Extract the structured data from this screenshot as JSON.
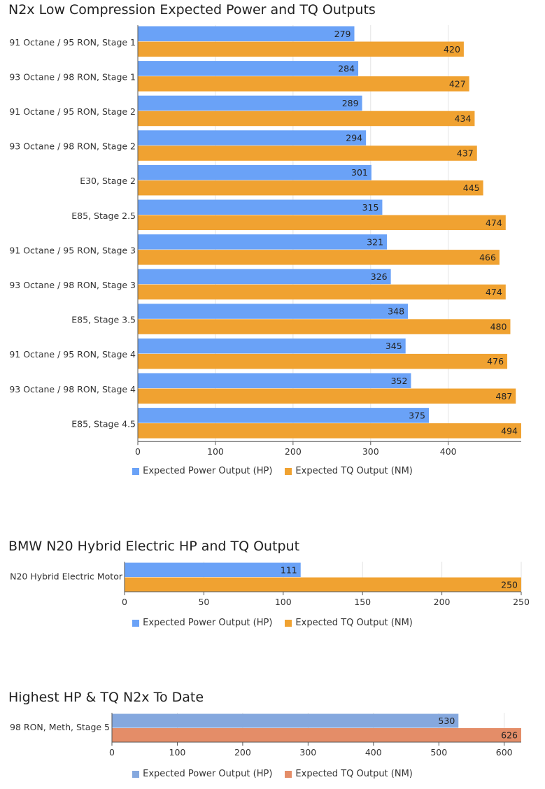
{
  "chart_data": [
    {
      "type": "bar",
      "orientation": "horizontal",
      "title": "N2x Low Compression Expected Power and TQ Outputs",
      "categories": [
        "91 Octane / 95 RON, Stage 1",
        "93 Octane / 98 RON, Stage 1",
        "91 Octane / 95 RON, Stage 2",
        "93 Octane / 98 RON, Stage 2",
        "E30, Stage 2",
        "E85, Stage 2.5",
        "91 Octane / 95 RON, Stage 3",
        "93 Octane / 98 RON, Stage 3",
        "E85, Stage 3.5",
        "91 Octane / 95 RON, Stage 4",
        "93 Octane / 98 RON, Stage 4",
        "E85, Stage 4.5"
      ],
      "series": [
        {
          "name": "Expected Power Output (HP)",
          "color": "#6aa2f7",
          "values": [
            279,
            284,
            289,
            294,
            301,
            315,
            321,
            326,
            348,
            345,
            352,
            375
          ]
        },
        {
          "name": "Expected TQ Output (NM)",
          "color": "#f0a231",
          "values": [
            420,
            427,
            434,
            437,
            445,
            474,
            466,
            474,
            480,
            476,
            487,
            494
          ]
        }
      ],
      "xlim": [
        0,
        494
      ],
      "xticks": [
        0,
        100,
        200,
        300,
        400
      ],
      "grid": true,
      "legend_position": "bottom"
    },
    {
      "type": "bar",
      "orientation": "horizontal",
      "title": "BMW N20 Hybrid Electric HP and TQ Output",
      "categories": [
        "N20 Hybrid Electric Motor"
      ],
      "series": [
        {
          "name": "Expected Power Output (HP)",
          "color": "#6aa2f7",
          "values": [
            111
          ]
        },
        {
          "name": "Expected TQ Output (NM)",
          "color": "#f0a231",
          "values": [
            250
          ]
        }
      ],
      "xlim": [
        0,
        250
      ],
      "xticks": [
        0,
        50,
        100,
        150,
        200,
        250
      ],
      "grid": true,
      "legend_position": "bottom"
    },
    {
      "type": "bar",
      "orientation": "horizontal",
      "title": "Highest HP & TQ N2x To Date",
      "categories": [
        "98 RON, Meth, Stage 5"
      ],
      "series": [
        {
          "name": "Expected Power Output (HP)",
          "color": "#85a8de",
          "values": [
            530
          ]
        },
        {
          "name": "Expected TQ Output (NM)",
          "color": "#e48d68",
          "values": [
            626
          ]
        }
      ],
      "xlim": [
        0,
        626
      ],
      "xticks": [
        0,
        100,
        200,
        300,
        400,
        500,
        600
      ],
      "grid": true,
      "legend_position": "bottom"
    }
  ]
}
